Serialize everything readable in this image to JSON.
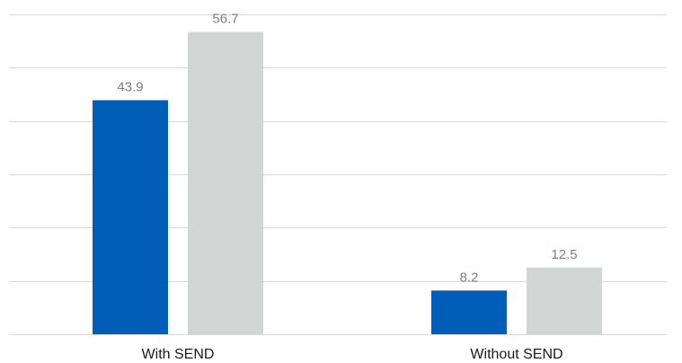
{
  "chart_data": {
    "type": "bar",
    "title": "",
    "xlabel": "",
    "ylabel": "",
    "categories": [
      "With SEND",
      "Without SEND"
    ],
    "series": [
      {
        "values": [
          43.9,
          8.2
        ],
        "color": "#005EB8"
      },
      {
        "values": [
          56.7,
          12.5
        ],
        "color": "#D1D5D4"
      }
    ],
    "ylim": [
      0,
      60
    ],
    "y_grid_step": 10,
    "grid": true,
    "legend": "none",
    "show_y_axis_labels": false,
    "data_labels": true
  }
}
